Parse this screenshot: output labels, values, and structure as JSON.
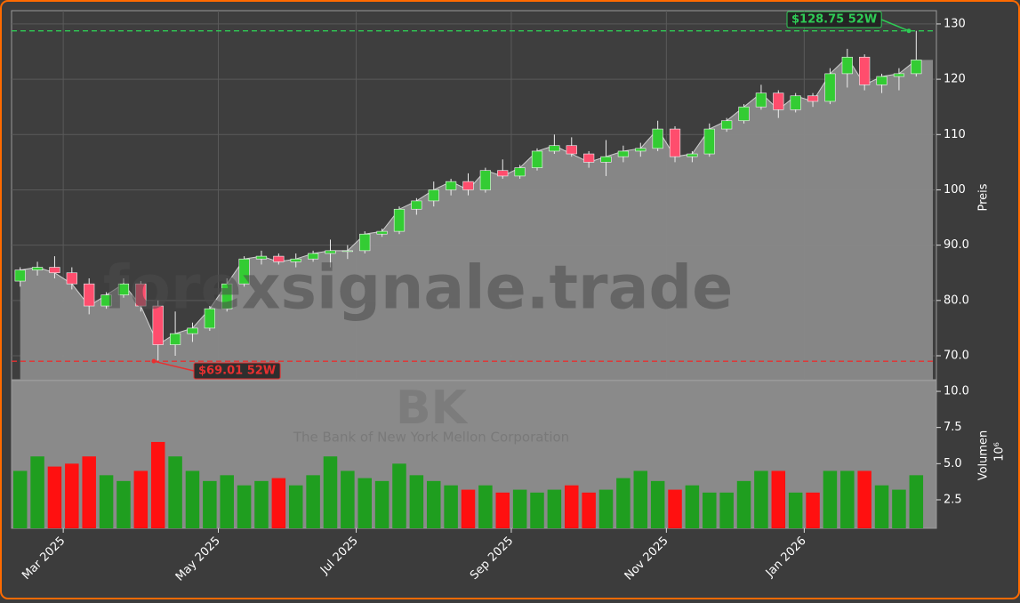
{
  "chart_data": {
    "type": "candlestick",
    "categories": [
      null,
      null,
      null,
      "Mar 2025",
      null,
      null,
      null,
      null,
      null,
      null,
      null,
      null,
      "May 2025",
      null,
      null,
      null,
      null,
      null,
      null,
      null,
      "Jul 2025",
      null,
      null,
      null,
      null,
      null,
      null,
      null,
      null,
      "Sep 2025",
      null,
      null,
      null,
      null,
      null,
      null,
      null,
      null,
      "Nov 2025",
      null,
      null,
      null,
      null,
      null,
      null,
      null,
      "Jan 2026",
      null,
      null,
      null,
      null,
      null,
      null
    ],
    "open": [
      83.5,
      85.5,
      86,
      85,
      83,
      79,
      81,
      83,
      79,
      72,
      74,
      75,
      78.5,
      83,
      87.5,
      88,
      87,
      87.5,
      88.5,
      89,
      89,
      92,
      92.5,
      96.5,
      98,
      100,
      101.5,
      100,
      103.5,
      102.5,
      104,
      107,
      108,
      106.5,
      105,
      106,
      107,
      107.5,
      111,
      106,
      106.5,
      111,
      112.5,
      115,
      117.5,
      114.5,
      117,
      116,
      121,
      124,
      119,
      120.5,
      121
    ],
    "high": [
      86,
      87,
      88,
      86,
      84,
      81.5,
      84,
      83.5,
      80,
      78,
      76,
      79,
      84,
      88,
      89,
      88.5,
      88.5,
      89,
      91,
      90,
      92.5,
      93,
      97,
      98.5,
      101.5,
      102,
      103,
      104,
      105.5,
      104.5,
      107.5,
      110,
      109.5,
      107,
      109,
      108,
      108.5,
      112.5,
      111.5,
      107,
      112,
      113,
      115.5,
      119,
      118,
      117.5,
      117.5,
      122,
      125.5,
      124.5,
      121,
      122,
      128.75
    ],
    "low": [
      82.5,
      84.5,
      84,
      82,
      77.5,
      78.5,
      80.5,
      78,
      69.01,
      70,
      72.5,
      74.5,
      78,
      82.5,
      86.5,
      86.5,
      86,
      87,
      86,
      87.5,
      88.5,
      91.5,
      92,
      95.5,
      97,
      99,
      99,
      99.5,
      102,
      102,
      103.5,
      106.5,
      106,
      104,
      102.5,
      105,
      106,
      107,
      105,
      105,
      106,
      110.5,
      112,
      114.5,
      113,
      114,
      115,
      115.5,
      118.5,
      118,
      117.5,
      118,
      120.5
    ],
    "close": [
      85.5,
      86,
      85,
      83,
      79,
      81,
      83,
      79,
      72,
      74,
      75,
      78.5,
      83,
      87.5,
      88,
      87,
      87.5,
      88.5,
      89,
      89,
      92,
      92.5,
      96.5,
      98,
      100,
      101.5,
      100,
      103.5,
      102.5,
      104,
      107,
      108,
      106.5,
      105,
      106,
      107,
      107.5,
      111,
      106,
      106.5,
      111,
      112.5,
      115,
      117.5,
      114.5,
      117,
      116,
      121,
      124,
      119,
      120.5,
      121,
      123.5
    ],
    "up_color": "#33cc33",
    "down_color": "#ff4d6d",
    "area_color": "#8a8a8a",
    "ylim": [
      65.66,
      132.4
    ],
    "yticks": [
      {
        "value": 70,
        "label": "70.0"
      },
      {
        "value": 80,
        "label": "80.0"
      },
      {
        "value": 90,
        "label": "90.0"
      },
      100,
      110,
      120,
      130
    ],
    "ylabel": "Preis",
    "grid": true,
    "annotations": [
      {
        "value": 128.75,
        "label": "$128.75 52W",
        "color": "#2ecc55"
      },
      {
        "value": 69.01,
        "label": "$69.01 52W",
        "color": "#e83030"
      }
    ],
    "watermark": "forexsignale.trade",
    "ticker": "BK",
    "company": "The Bank of New York Mellon Corporation",
    "volume": {
      "values": [
        4.5,
        5.5,
        4.8,
        5.0,
        5.5,
        4.2,
        3.8,
        4.5,
        6.5,
        5.5,
        4.5,
        3.8,
        4.2,
        3.5,
        3.8,
        4.0,
        3.5,
        4.2,
        5.5,
        4.5,
        4.0,
        3.8,
        5.0,
        4.2,
        3.8,
        3.5,
        3.2,
        3.5,
        3.0,
        3.2,
        3.0,
        3.2,
        3.5,
        3.0,
        3.2,
        4.0,
        4.5,
        3.8,
        3.2,
        3.5,
        3.0,
        3.0,
        3.8,
        4.5,
        4.5,
        3.0,
        3.0,
        4.5,
        4.5,
        4.5,
        3.5,
        3.2,
        4.2
      ],
      "up_color": "#1f9e1f",
      "down_color": "#ff1010",
      "ylim": [
        0.53,
        10.74
      ],
      "yticks": [
        2.5,
        {
          "value": 5,
          "label": "5.0"
        },
        7.5,
        {
          "value": 10,
          "label": "10.0"
        }
      ],
      "label": "Volumen",
      "offset": "10⁶"
    }
  }
}
